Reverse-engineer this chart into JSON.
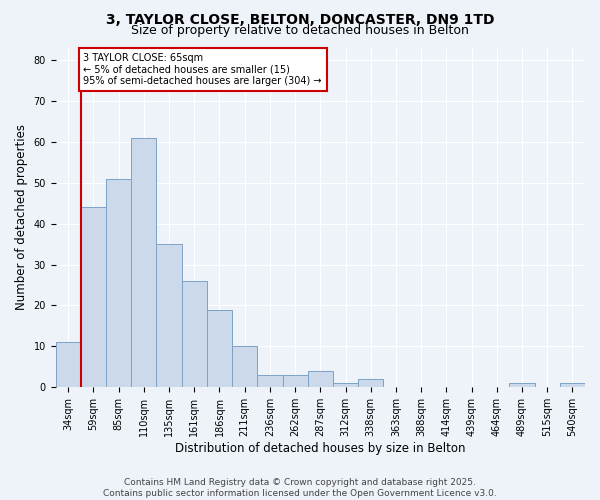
{
  "title1": "3, TAYLOR CLOSE, BELTON, DONCASTER, DN9 1TD",
  "title2": "Size of property relative to detached houses in Belton",
  "xlabel": "Distribution of detached houses by size in Belton",
  "ylabel": "Number of detached properties",
  "categories": [
    "34sqm",
    "59sqm",
    "85sqm",
    "110sqm",
    "135sqm",
    "161sqm",
    "186sqm",
    "211sqm",
    "236sqm",
    "262sqm",
    "287sqm",
    "312sqm",
    "338sqm",
    "363sqm",
    "388sqm",
    "414sqm",
    "439sqm",
    "464sqm",
    "489sqm",
    "515sqm",
    "540sqm"
  ],
  "values": [
    11,
    44,
    51,
    61,
    35,
    26,
    19,
    10,
    3,
    3,
    4,
    1,
    2,
    0,
    0,
    0,
    0,
    0,
    1,
    0,
    1
  ],
  "bar_color": "#ccd9ea",
  "bar_edge_color": "#7ba3c8",
  "annotation_text": "3 TAYLOR CLOSE: 65sqm\n← 5% of detached houses are smaller (15)\n95% of semi-detached houses are larger (304) →",
  "annotation_box_color": "#ffffff",
  "annotation_box_edge_color": "#cc0000",
  "vline_color": "#cc0000",
  "vline_x_index": 0.5,
  "ylim": [
    0,
    83
  ],
  "yticks": [
    0,
    10,
    20,
    30,
    40,
    50,
    60,
    70,
    80
  ],
  "bg_color": "#eef2f9",
  "footer": "Contains HM Land Registry data © Crown copyright and database right 2025.\nContains public sector information licensed under the Open Government Licence v3.0.",
  "title_fontsize": 10,
  "subtitle_fontsize": 9,
  "axis_label_fontsize": 8.5,
  "tick_fontsize": 7,
  "annotation_fontsize": 7,
  "footer_fontsize": 6.5
}
